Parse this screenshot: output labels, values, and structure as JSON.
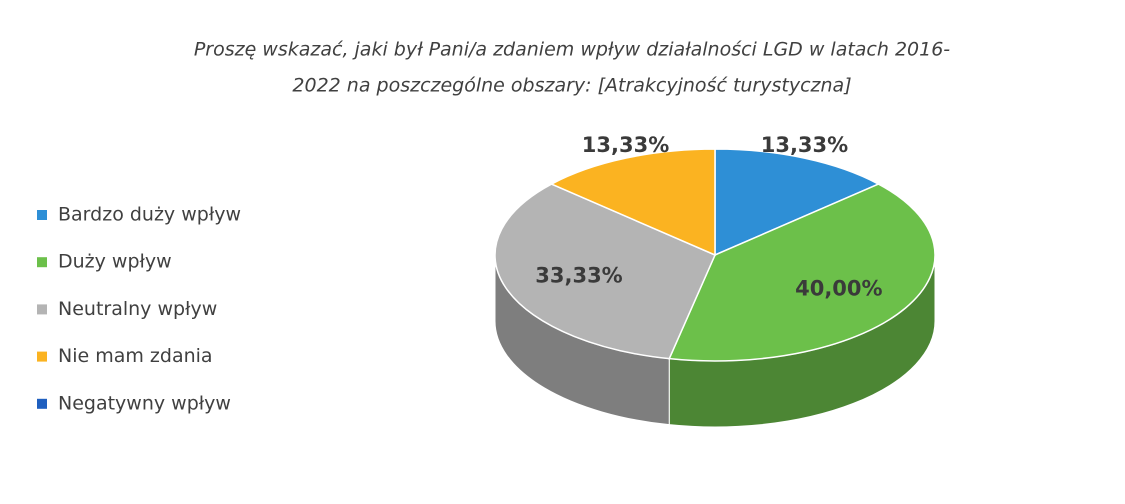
{
  "chart_data": {
    "type": "pie3d",
    "title": [
      "Proszę wskazać, jaki był Pani/a zdaniem wpływ działalności LGD w latach 2016-",
      "2022 na poszczególne obszary: [Atrakcyjność turystyczna]"
    ],
    "categories": [
      "Bardzo duży wpływ",
      "Duży wpływ",
      "Neutralny wpływ",
      "Nie mam zdania",
      "Negatywny wpływ"
    ],
    "values": [
      13.33,
      40,
      33.33,
      13.33,
      0
    ],
    "value_labels": [
      "13,33%",
      "40,00%",
      "33,33%",
      "13,33%",
      null
    ],
    "colors": [
      "#2e8fd6",
      "#6cc04a",
      "#b4b4b4",
      "#fbb321",
      "#1f5fbf"
    ],
    "legend": "left"
  }
}
